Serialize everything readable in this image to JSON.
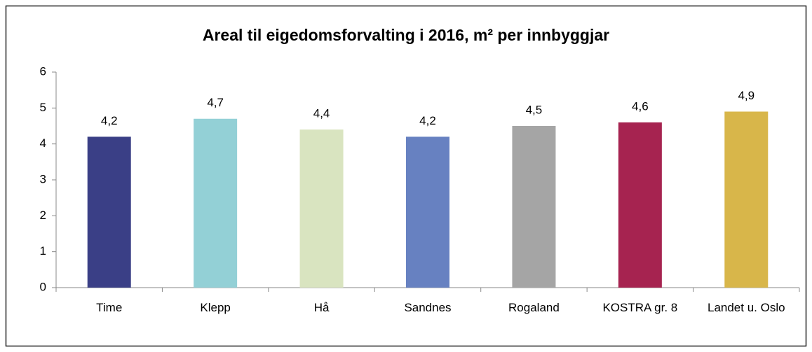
{
  "chart_data": {
    "type": "bar",
    "title": "Areal til eigedomsforvalting i 2016, m² per innbyggjar",
    "categories": [
      "Time",
      "Klepp",
      "Hå",
      "Sandnes",
      "Rogaland",
      "KOSTRA gr. 8",
      "Landet u. Oslo"
    ],
    "values": [
      4.2,
      4.7,
      4.4,
      4.2,
      4.5,
      4.6,
      4.9
    ],
    "value_labels": [
      "4,2",
      "4,7",
      "4,4",
      "4,2",
      "4,5",
      "4,6",
      "4,9"
    ],
    "colors": [
      "#3a3f86",
      "#93d0d6",
      "#d9e4c0",
      "#6781c1",
      "#a5a5a5",
      "#a62350",
      "#d8b64a"
    ],
    "ylim": [
      0,
      6
    ],
    "yticks": [
      0,
      1,
      2,
      3,
      4,
      5,
      6
    ],
    "grid": false
  }
}
